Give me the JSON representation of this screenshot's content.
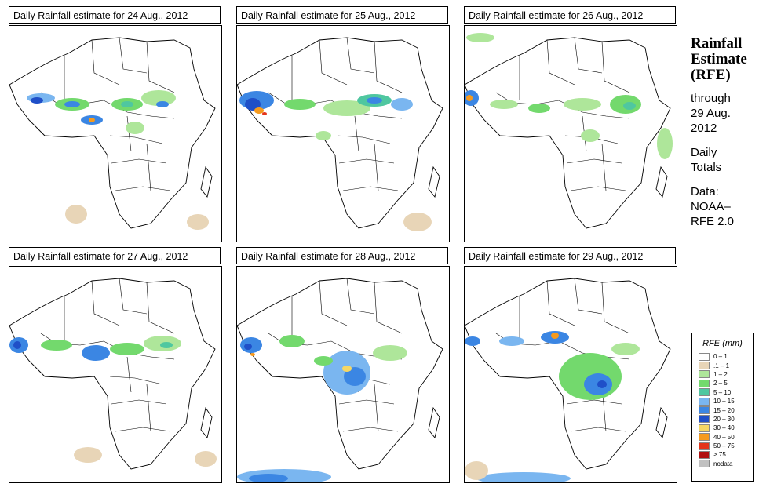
{
  "panels": [
    {
      "title": "Daily Rainfall estimate for  24 Aug., 2012"
    },
    {
      "title": "Daily Rainfall estimate for  25 Aug., 2012"
    },
    {
      "title": "Daily Rainfall estimate for  26 Aug., 2012"
    },
    {
      "title": "Daily Rainfall estimate for  27 Aug., 2012"
    },
    {
      "title": "Daily Rainfall estimate for  28 Aug., 2012"
    },
    {
      "title": "Daily Rainfall estimate for  29 Aug., 2012"
    }
  ],
  "side": {
    "title_line1": "Rainfall",
    "title_line2": "Estimate",
    "title_line3": "(RFE)",
    "through_line1": "through",
    "through_line2": "29 Aug.",
    "through_line3": "2012",
    "daily_line1": "Daily",
    "daily_line2": "Totals",
    "data_line1": "Data:",
    "data_line2": "NOAA–",
    "data_line3": "RFE 2.0"
  },
  "legend": {
    "title": "RFE (mm)",
    "items": [
      {
        "label": "0 – 1",
        "color": "#ffffff"
      },
      {
        "label": ".1 – 1",
        "color": "#e8d5b7"
      },
      {
        "label": "1 – 2",
        "color": "#aee69a"
      },
      {
        "label": "2 – 5",
        "color": "#73d96d"
      },
      {
        "label": "5 – 10",
        "color": "#4fc7a0"
      },
      {
        "label": "10 – 15",
        "color": "#7ab6f0"
      },
      {
        "label": "15 – 20",
        "color": "#3b86e3"
      },
      {
        "label": "20 – 30",
        "color": "#1f4fc8"
      },
      {
        "label": "30 – 40",
        "color": "#f5d765"
      },
      {
        "label": "40 – 50",
        "color": "#f59a1e"
      },
      {
        "label": "50 – 75",
        "color": "#e4341a"
      },
      {
        "label": "> 75",
        "color": "#b01010"
      },
      {
        "label": "nodata",
        "color": "#c0c0c0"
      }
    ]
  }
}
